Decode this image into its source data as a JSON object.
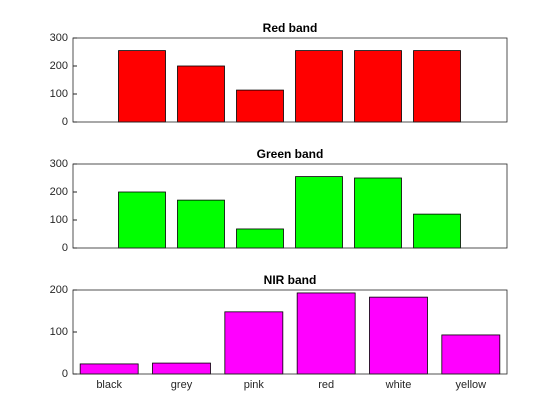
{
  "chart_data": [
    {
      "type": "bar",
      "title": "Red band",
      "categories": [
        null,
        null,
        null,
        null,
        null,
        null
      ],
      "values": [
        255,
        200,
        114,
        255,
        255,
        255
      ],
      "color": "#ff0000",
      "ylim": [
        0,
        300
      ],
      "yticks": [
        0,
        100,
        200,
        300
      ]
    },
    {
      "type": "bar",
      "title": "Green band",
      "categories": [
        null,
        null,
        null,
        null,
        null,
        null
      ],
      "values": [
        200,
        171,
        68,
        255,
        250,
        121
      ],
      "color": "#00ff00",
      "ylim": [
        0,
        300
      ],
      "yticks": [
        0,
        100,
        200,
        300
      ]
    },
    {
      "type": "bar",
      "title": "NIR band",
      "categories": [
        "black",
        "grey",
        "pink",
        "red",
        "white",
        "yellow"
      ],
      "values": [
        24,
        26,
        148,
        193,
        183,
        93
      ],
      "color": "#ff00ff",
      "ylim": [
        0,
        200
      ],
      "yticks": [
        0,
        100,
        200
      ]
    }
  ]
}
